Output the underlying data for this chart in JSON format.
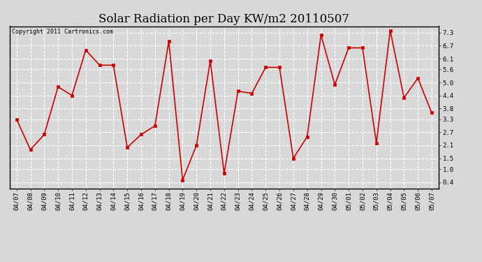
{
  "title": "Solar Radiation per Day KW/m2 20110507",
  "copyright_text": "Copyright 2011 Cartronics.com",
  "x_labels": [
    "04/07",
    "04/08",
    "04/09",
    "04/10",
    "04/11",
    "04/12",
    "04/13",
    "04/14",
    "04/15",
    "04/16",
    "04/17",
    "04/18",
    "04/19",
    "04/20",
    "04/21",
    "04/22",
    "04/23",
    "04/24",
    "04/25",
    "04/26",
    "04/27",
    "04/28",
    "04/29",
    "04/30",
    "05/01",
    "05/02",
    "05/03",
    "05/04",
    "05/05",
    "05/06",
    "05/07"
  ],
  "y_values": [
    3.3,
    1.9,
    2.6,
    4.8,
    4.4,
    6.5,
    5.8,
    5.8,
    2.0,
    2.6,
    3.0,
    6.9,
    0.5,
    2.1,
    6.0,
    0.8,
    4.6,
    4.5,
    5.7,
    5.7,
    1.5,
    2.5,
    7.2,
    4.9,
    6.6,
    6.6,
    2.2,
    7.4,
    4.3,
    5.2,
    3.6
  ],
  "line_color": "#cc0000",
  "marker_color": "#cc0000",
  "marker": "s",
  "marker_size": 2.5,
  "line_width": 1.2,
  "y_ticks": [
    0.4,
    1.0,
    1.5,
    2.1,
    2.7,
    3.3,
    3.8,
    4.4,
    5.0,
    5.6,
    6.1,
    6.7,
    7.3
  ],
  "ylim": [
    0.1,
    7.6
  ],
  "bg_color": "#d8d8d8",
  "grid_color": "#ffffff",
  "title_fontsize": 12,
  "tick_fontsize": 6.5,
  "copyright_fontsize": 6.0
}
